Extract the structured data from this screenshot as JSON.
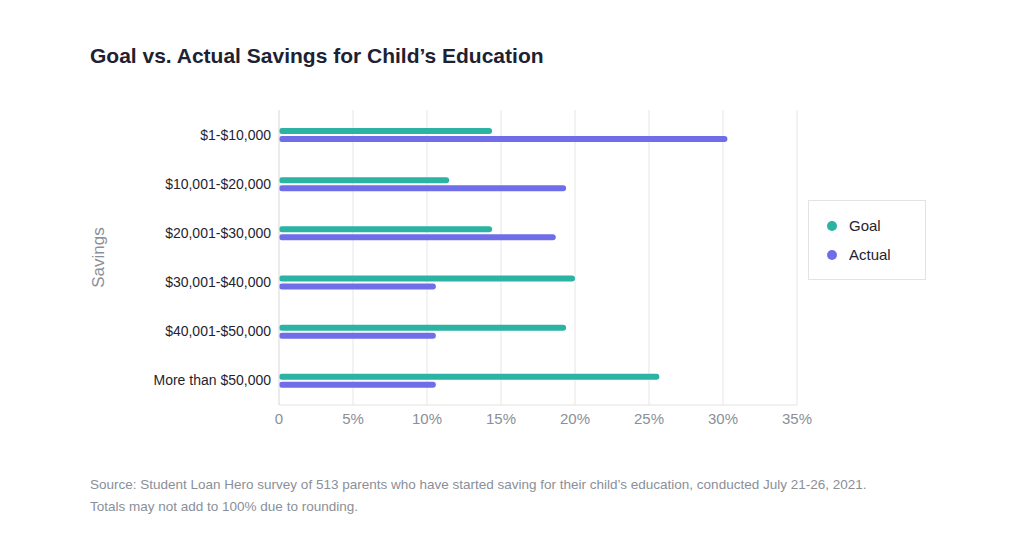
{
  "chart_data": {
    "type": "bar",
    "title": "Goal vs. Actual Savings for Child’s Education",
    "orientation": "horizontal",
    "y_label": "Savings",
    "categories": [
      "$1-$10,000",
      "$10,001-$20,000",
      "$20,001-$30,000",
      "$30,001-$40,000",
      "$40,001-$50,000",
      "More than $50,000"
    ],
    "series": [
      {
        "name": "Goal",
        "color": "#2bb3a3",
        "values": [
          14.4,
          11.5,
          14.4,
          20.0,
          19.4,
          25.7
        ]
      },
      {
        "name": "Actual",
        "color": "#6f6ee8",
        "values": [
          30.3,
          19.4,
          18.7,
          10.6,
          10.6,
          10.6
        ]
      }
    ],
    "xlim": [
      0,
      35
    ],
    "xticks": [
      0,
      {
        "value": 5,
        "label": "5%"
      },
      {
        "value": 10,
        "label": "10%"
      },
      {
        "value": 15,
        "label": "15%"
      },
      {
        "value": 20,
        "label": "20%"
      },
      {
        "value": 25,
        "label": "25%"
      },
      {
        "value": 30,
        "label": "30%"
      },
      {
        "value": 35,
        "label": "35%"
      }
    ],
    "grid": true,
    "legend": "right",
    "annotations": [
      "Source: Student Loan Hero survey of 513 parents who have started saving for their child’s education, conducted July 21-26, 2021.",
      "Totals may not add to 100% due to rounding."
    ]
  }
}
